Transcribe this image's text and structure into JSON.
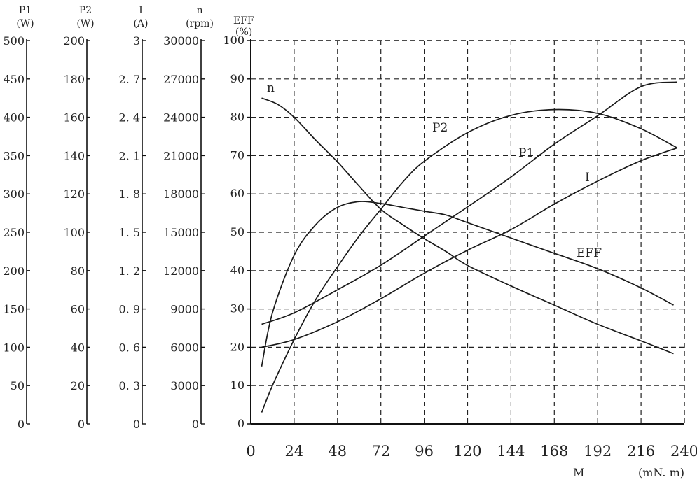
{
  "chart_data": {
    "type": "line",
    "x_axis": {
      "label": "M",
      "unit": "(mN. m)",
      "ticks": [
        "0",
        "24",
        "48",
        "72",
        "96",
        "120",
        "144",
        "168",
        "192",
        "216",
        "240"
      ],
      "range": [
        0,
        240
      ]
    },
    "eff_axis": {
      "title": "EFF",
      "unit": "(%)",
      "ticks": [
        "0",
        "10",
        "20",
        "30",
        "40",
        "50",
        "60",
        "70",
        "80",
        "90",
        "100"
      ],
      "range": [
        0,
        100
      ]
    },
    "side_axes": [
      {
        "id": "p1",
        "title": "P1",
        "unit": "(W)",
        "range": [
          0,
          500
        ],
        "ticks": [
          "0",
          "50",
          "100",
          "150",
          "200",
          "250",
          "300",
          "350",
          "400",
          "450",
          "500"
        ]
      },
      {
        "id": "p2",
        "title": "P2",
        "unit": "(W)",
        "range": [
          0,
          200
        ],
        "ticks": [
          "0",
          "20",
          "40",
          "60",
          "80",
          "100",
          "120",
          "140",
          "160",
          "180",
          "200"
        ]
      },
      {
        "id": "i",
        "title": "I",
        "unit": "(A)",
        "range": [
          0,
          3
        ],
        "ticks": [
          "0",
          "0. 3",
          "0. 6",
          "0. 9",
          "1. 2",
          "1. 5",
          "1. 8",
          "2. 1",
          "2. 4",
          "2. 7",
          "3"
        ]
      },
      {
        "id": "n",
        "title": "n",
        "unit": "(rpm)",
        "range": [
          0,
          30000
        ],
        "ticks": [
          "0",
          "3000",
          "6000",
          "9000",
          "12000",
          "15000",
          "18000",
          "21000",
          "24000",
          "27000",
          "30000"
        ]
      }
    ],
    "grid": true,
    "series": [
      {
        "name": "n",
        "axis": "n",
        "x": [
          6,
          15,
          24,
          36,
          48,
          60,
          72,
          84,
          96,
          108,
          120,
          144,
          168,
          192,
          216,
          234
        ],
        "y": [
          25500,
          25000,
          24000,
          22200,
          20500,
          18600,
          16800,
          15600,
          14500,
          13500,
          12400,
          10800,
          9300,
          7800,
          6500,
          5500
        ]
      },
      {
        "name": "P2",
        "axis": "p2",
        "x": [
          6,
          12,
          24,
          36,
          48,
          60,
          72,
          84,
          96,
          120,
          144,
          168,
          192,
          216,
          236
        ],
        "y": [
          6,
          20,
          44,
          65,
          82,
          98,
          112,
          126,
          137,
          152,
          161,
          164,
          162,
          154,
          144
        ]
      },
      {
        "name": "P1",
        "axis": "p1",
        "x": [
          6,
          24,
          48,
          72,
          96,
          120,
          144,
          168,
          192,
          216,
          236
        ],
        "y": [
          130,
          145,
          175,
          207,
          245,
          283,
          322,
          365,
          402,
          440,
          446
        ]
      },
      {
        "name": "I",
        "axis": "i",
        "x": [
          6,
          24,
          48,
          72,
          96,
          120,
          144,
          168,
          192,
          216,
          236
        ],
        "y": [
          0.6,
          0.66,
          0.8,
          0.98,
          1.18,
          1.36,
          1.52,
          1.72,
          1.9,
          2.06,
          2.16
        ]
      },
      {
        "name": "EFF",
        "axis": "eff",
        "x": [
          6,
          12,
          24,
          36,
          48,
          60,
          72,
          84,
          96,
          108,
          120,
          144,
          168,
          192,
          216,
          234
        ],
        "y": [
          15,
          29,
          44,
          52,
          56.5,
          58,
          57.5,
          56.5,
          55.5,
          54.5,
          52.5,
          48.5,
          44.5,
          40.5,
          35.5,
          31
        ]
      }
    ]
  }
}
